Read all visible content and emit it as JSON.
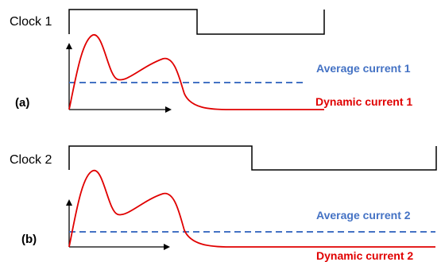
{
  "colors": {
    "clock": "#000000",
    "average": "#4472c4",
    "dynamic": "#e00000",
    "axis": "#000000"
  },
  "panel_a": {
    "clock_label": "Clock 1",
    "panel_label": "(a)",
    "average_label": "Average current 1",
    "dynamic_label": "Dynamic current 1"
  },
  "panel_b": {
    "clock_label": "Clock 2",
    "panel_label": "(b)",
    "average_label": "Average current 2",
    "dynamic_label": "Dynamic current 2"
  }
}
